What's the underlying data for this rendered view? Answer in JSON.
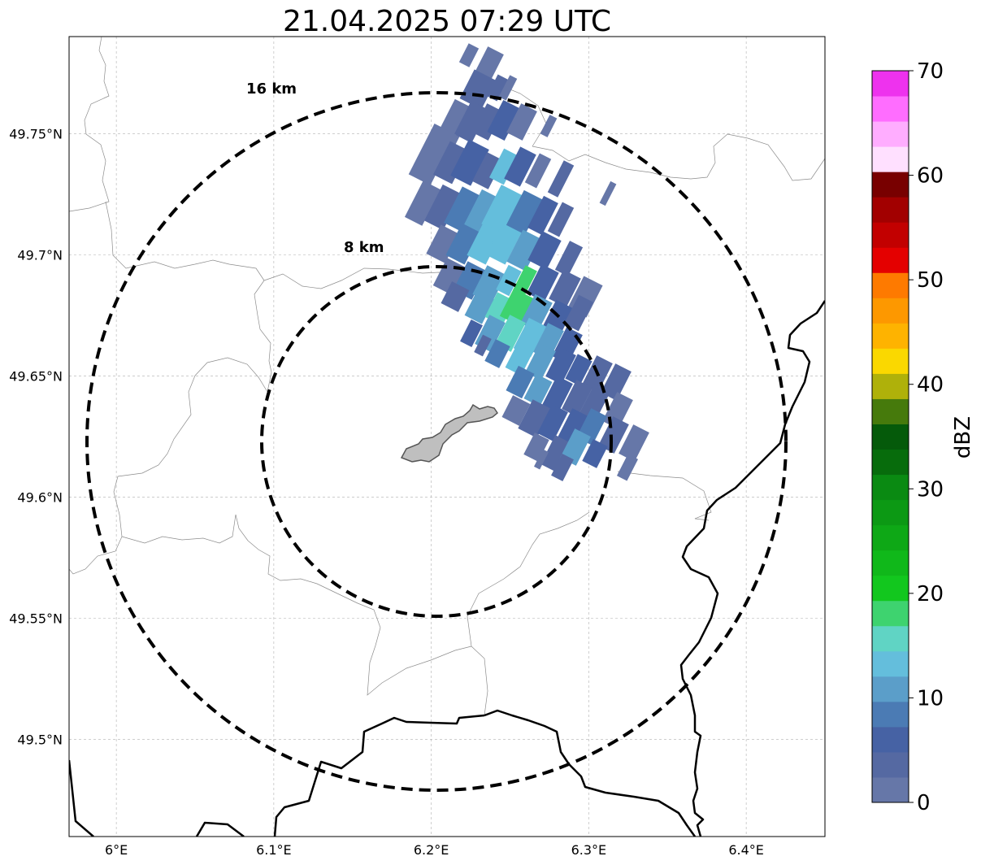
{
  "title": "21.04.2025 07:29 UTC",
  "map": {
    "lon_range": [
      5.97,
      6.45
    ],
    "lat_range": [
      49.46,
      49.79
    ],
    "gridlines": true,
    "lon_ticks": [
      {
        "value": 6.0,
        "label": "6°E"
      },
      {
        "value": 6.1,
        "label": "6.1°E"
      },
      {
        "value": 6.2,
        "label": "6.2°E"
      },
      {
        "value": 6.3,
        "label": "6.3°E"
      },
      {
        "value": 6.4,
        "label": "6.4°E"
      }
    ],
    "lat_ticks": [
      {
        "value": 49.75,
        "label": "49.75°N"
      },
      {
        "value": 49.7,
        "label": "49.7°N"
      },
      {
        "value": 49.65,
        "label": "49.65°N"
      },
      {
        "value": 49.6,
        "label": "49.6°N"
      },
      {
        "value": 49.55,
        "label": "49.55°N"
      },
      {
        "value": 49.5,
        "label": "49.5°N"
      }
    ],
    "range_rings": [
      {
        "label": "8 km",
        "radius_km": 8
      },
      {
        "label": "16 km",
        "radius_km": 16
      }
    ],
    "radar_center": {
      "lon": 6.203,
      "lat": 49.622
    },
    "colors": {
      "country_border": "#000000",
      "admin_border": "#888888",
      "city_fill": "#bfbfbf",
      "city_edge": "#555555",
      "grid": "#b0b0b0"
    }
  },
  "colorbar": {
    "label": "dBZ",
    "min": 0,
    "max": 70,
    "ticks": [
      {
        "value": 0,
        "label": "0"
      },
      {
        "value": 10,
        "label": "10"
      },
      {
        "value": 20,
        "label": "20"
      },
      {
        "value": 30,
        "label": "30"
      },
      {
        "value": 40,
        "label": "40"
      },
      {
        "value": 50,
        "label": "50"
      },
      {
        "value": 60,
        "label": "60"
      },
      {
        "value": 70,
        "label": "70"
      }
    ],
    "colors": [
      "#6677a8",
      "#5569a2",
      "#4662a4",
      "#4b7bb4",
      "#5b9ec9",
      "#64bedc",
      "#60d4c4",
      "#3ed36f",
      "#12c71e",
      "#10b81a",
      "#0ea816",
      "#0c9914",
      "#0a8a12",
      "#076c0c",
      "#055a0a",
      "#467a0c",
      "#afb10a",
      "#fad800",
      "#feb300",
      "#fd9800",
      "#fe7a00",
      "#e40000",
      "#c20000",
      "#a20000",
      "#780000",
      "#ffe0ff",
      "#ffadff",
      "#ff6dff",
      "#ee32ee"
    ]
  }
}
